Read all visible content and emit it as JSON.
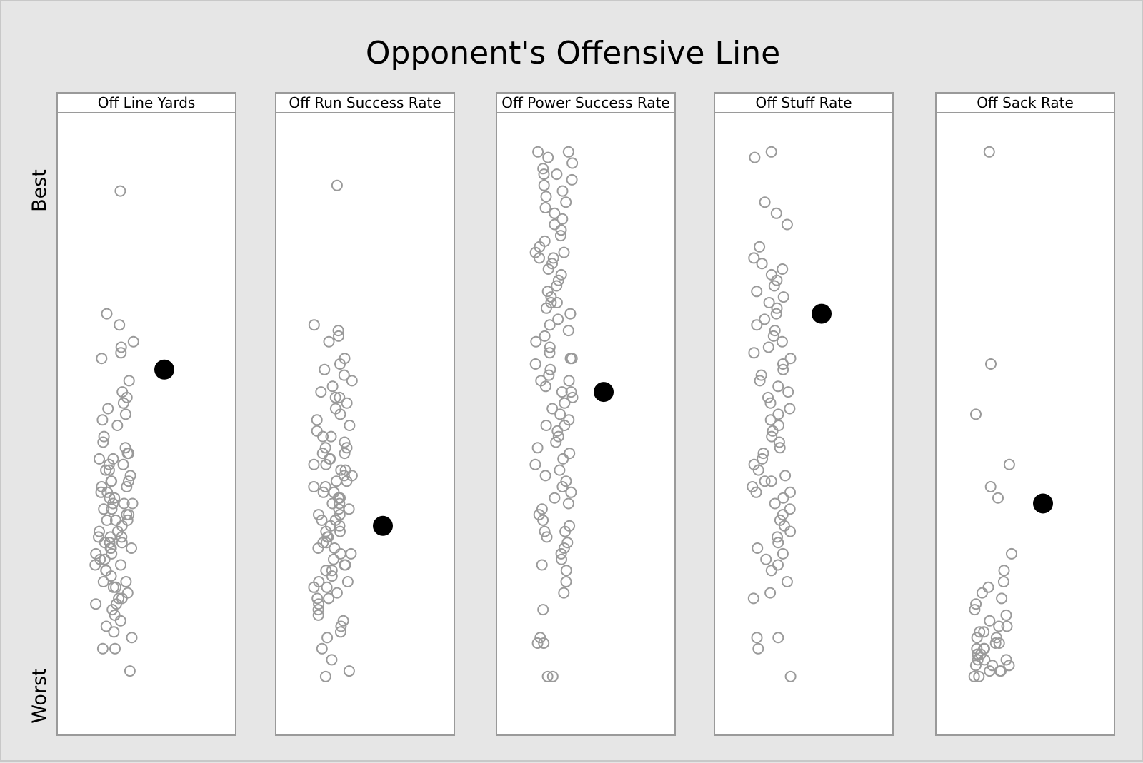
{
  "chart_data": {
    "type": "scatter",
    "title": "Opponent's Offensive Line",
    "y_axis": {
      "top_label": "Best",
      "bottom_label": "Worst",
      "tick_labels": false
    },
    "ylim": [
      0,
      100
    ],
    "grid": false,
    "legend": "none",
    "colors": {
      "background": "#e6e6e6",
      "panel": "#ffffff",
      "panel_border": "#9a9a9a",
      "other_points": "#9a9a9a",
      "highlight_point": "#000000"
    },
    "panels": [
      {
        "name": "Off Line Yards",
        "highlight": 60,
        "points": [
          92,
          70,
          68,
          65,
          64,
          63,
          62,
          58,
          56,
          55,
          54,
          53,
          52,
          51,
          50,
          48,
          47,
          46,
          45,
          45,
          44,
          44,
          43,
          43,
          42,
          42,
          41,
          40,
          40,
          40,
          39,
          39,
          38,
          38,
          37,
          37,
          36,
          36,
          36,
          35,
          35,
          34,
          34,
          33,
          33,
          33,
          32,
          31,
          31,
          30,
          30,
          30,
          29,
          29,
          29,
          28,
          28,
          28,
          27,
          27,
          26,
          26,
          25,
          25,
          24,
          24,
          23,
          22,
          22,
          21,
          21,
          20,
          19,
          19,
          18,
          18,
          17,
          16,
          15,
          14,
          13,
          12,
          10,
          10,
          6
        ]
      },
      {
        "name": "Off Run Success Rate",
        "highlight": 32,
        "points": [
          93,
          68,
          67,
          66,
          65,
          62,
          61,
          60,
          59,
          58,
          57,
          56,
          55,
          55,
          54,
          53,
          52,
          51,
          50,
          49,
          48,
          48,
          47,
          46,
          46,
          45,
          45,
          44,
          44,
          43,
          43,
          42,
          42,
          41,
          41,
          40,
          40,
          39,
          39,
          38,
          38,
          37,
          37,
          36,
          36,
          35,
          35,
          34,
          34,
          33,
          33,
          32,
          32,
          31,
          31,
          30,
          30,
          29,
          29,
          28,
          28,
          27,
          27,
          26,
          25,
          25,
          24,
          24,
          23,
          22,
          22,
          21,
          21,
          20,
          19,
          19,
          18,
          17,
          16,
          15,
          14,
          13,
          12,
          10,
          8,
          6,
          5
        ]
      },
      {
        "name": "Off Power Success Rate",
        "highlight": 56,
        "points": [
          99,
          99,
          98,
          97,
          96,
          95,
          95,
          94,
          93,
          92,
          91,
          90,
          89,
          88,
          87,
          86,
          85,
          84,
          83,
          82,
          81,
          81,
          80,
          80,
          79,
          78,
          77,
          76,
          75,
          74,
          73,
          72,
          72,
          71,
          70,
          70,
          69,
          68,
          67,
          66,
          65,
          64,
          63,
          62,
          62,
          61,
          60,
          59,
          58,
          58,
          57,
          56,
          56,
          55,
          54,
          53,
          52,
          51,
          50,
          50,
          49,
          48,
          47,
          46,
          45,
          44,
          43,
          42,
          41,
          40,
          39,
          38,
          37,
          36,
          35,
          34,
          33,
          32,
          31,
          31,
          30,
          29,
          28,
          27,
          26,
          25,
          24,
          22,
          20,
          17,
          12,
          11,
          11,
          5,
          5
        ]
      },
      {
        "name": "Off Stuff Rate",
        "highlight": 70,
        "points": [
          99,
          98,
          90,
          88,
          86,
          82,
          80,
          79,
          78,
          77,
          76,
          75,
          74,
          73,
          72,
          71,
          70,
          69,
          68,
          67,
          66,
          65,
          64,
          63,
          62,
          61,
          60,
          59,
          58,
          57,
          56,
          55,
          54,
          53,
          52,
          51,
          50,
          49,
          48,
          47,
          46,
          45,
          44,
          43,
          42,
          41,
          40,
          40,
          39,
          38,
          38,
          37,
          36,
          35,
          34,
          33,
          32,
          31,
          30,
          29,
          28,
          27,
          26,
          25,
          24,
          22,
          20,
          19,
          12,
          12,
          10,
          5
        ]
      },
      {
        "name": "Off Sack Rate",
        "highlight": 36,
        "points": [
          99,
          61,
          52,
          43,
          39,
          37,
          27,
          24,
          22,
          21,
          20,
          19,
          18,
          17,
          16,
          15,
          14,
          14,
          13,
          13,
          12,
          12,
          11,
          11,
          10,
          10,
          10,
          9,
          9,
          9,
          8,
          8,
          8,
          7,
          7,
          7,
          6,
          6,
          6,
          5,
          5
        ]
      }
    ]
  }
}
